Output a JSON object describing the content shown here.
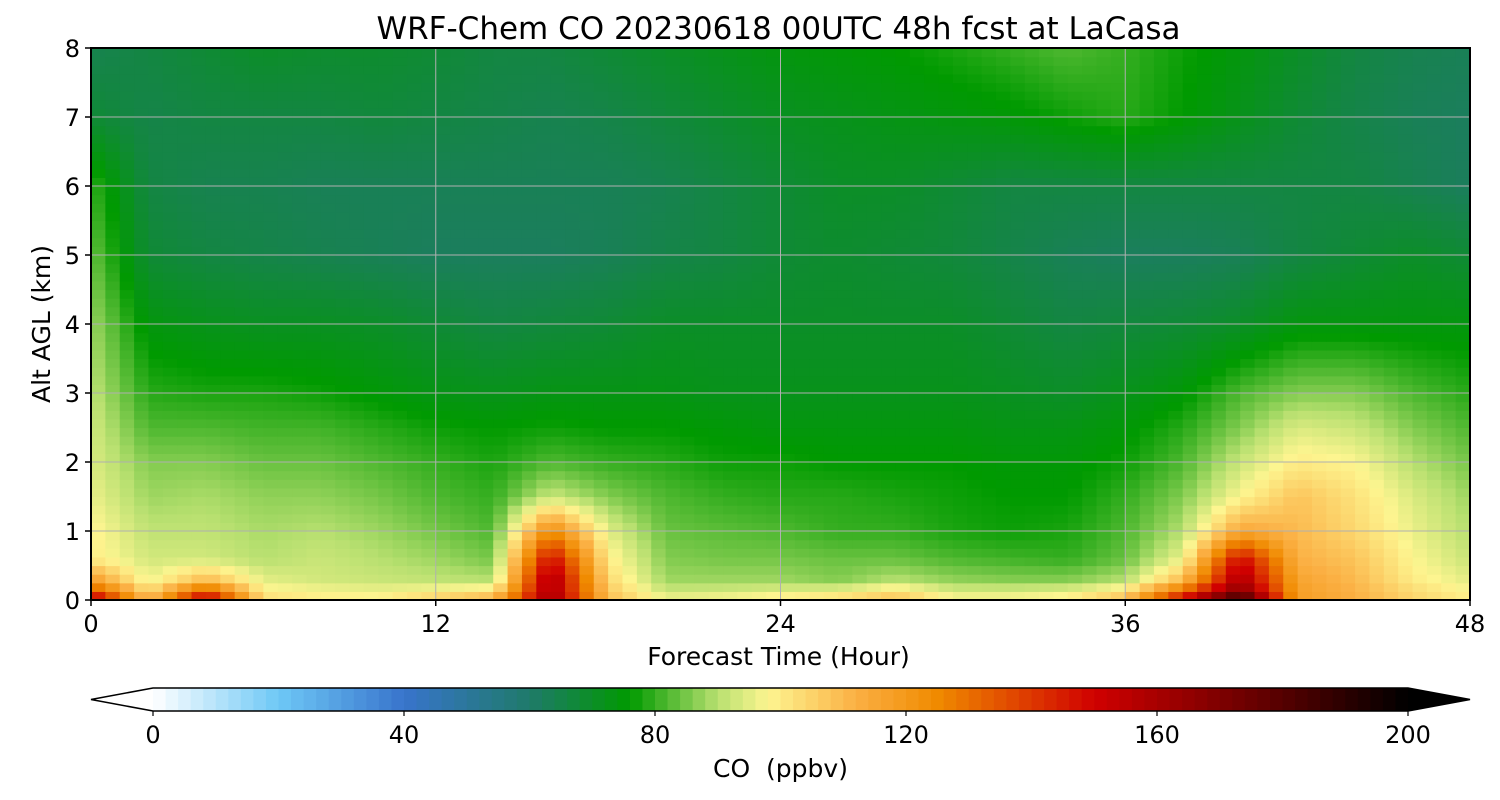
{
  "chart_data": {
    "type": "heatmap",
    "title": "WRF-Chem CO  20230618 00UTC 48h fcst at LaCasa",
    "xlabel": "Forecast Time (Hour)",
    "ylabel": "Alt AGL (km)",
    "xlim": [
      0,
      48
    ],
    "ylim": [
      0,
      8
    ],
    "x_ticks": [
      "0",
      "12",
      "24",
      "36",
      "48"
    ],
    "y_ticks": [
      "0",
      "1",
      "2",
      "3",
      "4",
      "5",
      "6",
      "7",
      "8"
    ],
    "grid": true,
    "colorbar": {
      "label": "CO  (ppbv)",
      "range": [
        0,
        200
      ],
      "ticks": [
        "0",
        "40",
        "80",
        "120",
        "160",
        "200"
      ],
      "extend": "both",
      "colors": [
        {
          "v": 0,
          "c": "#ffffff"
        },
        {
          "v": 20,
          "c": "#6ec8f6"
        },
        {
          "v": 40,
          "c": "#3874cc"
        },
        {
          "v": 60,
          "c": "#1f7a6a"
        },
        {
          "v": 76,
          "c": "#009a00"
        },
        {
          "v": 90,
          "c": "#b8e070"
        },
        {
          "v": 98,
          "c": "#fdf590"
        },
        {
          "v": 112,
          "c": "#fbb044"
        },
        {
          "v": 125,
          "c": "#f08a00"
        },
        {
          "v": 150,
          "c": "#d00000"
        },
        {
          "v": 175,
          "c": "#6a0000"
        },
        {
          "v": 200,
          "c": "#000000"
        }
      ]
    },
    "hours": [
      0,
      2,
      4,
      6,
      8,
      10,
      12,
      14,
      16,
      18,
      20,
      22,
      24,
      26,
      28,
      30,
      32,
      34,
      36,
      38,
      40,
      42,
      44,
      46,
      48
    ],
    "altitudes_km": [
      0,
      0.1,
      0.3,
      0.6,
      1,
      1.5,
      2,
      2.5,
      3,
      4,
      5,
      6,
      7,
      8
    ],
    "co_ppbv": [
      [
        165,
        110,
        160,
        104,
        100,
        100,
        108,
        115,
        165,
        110,
        98,
        99,
        102,
        105,
        110,
        98,
        98,
        100,
        110,
        155,
        200,
        118,
        112,
        104,
        100
      ],
      [
        140,
        105,
        140,
        100,
        98,
        97,
        100,
        104,
        160,
        108,
        93,
        94,
        96,
        98,
        104,
        95,
        95,
        97,
        104,
        135,
        170,
        118,
        112,
        104,
        98
      ],
      [
        118,
        96,
        110,
        95,
        93,
        92,
        91,
        90,
        160,
        104,
        88,
        88,
        88,
        86,
        90,
        87,
        86,
        86,
        90,
        110,
        160,
        116,
        110,
        100,
        95
      ],
      [
        100,
        93,
        93,
        90,
        92,
        90,
        88,
        85,
        150,
        100,
        86,
        85,
        85,
        84,
        84,
        82,
        81,
        80,
        84,
        96,
        150,
        112,
        108,
        98,
        92
      ],
      [
        99,
        91,
        91,
        89,
        90,
        88,
        85,
        82,
        125,
        95,
        84,
        83,
        82,
        80,
        80,
        78,
        77,
        78,
        82,
        90,
        115,
        110,
        104,
        96,
        90
      ],
      [
        96,
        88,
        89,
        87,
        87,
        85,
        82,
        80,
        92,
        86,
        82,
        80,
        79,
        79,
        78,
        77,
        76,
        76,
        80,
        86,
        98,
        108,
        102,
        94,
        88
      ],
      [
        94,
        86,
        86,
        84,
        84,
        82,
        80,
        78,
        82,
        80,
        79,
        77,
        77,
        76,
        76,
        76,
        75,
        75,
        77,
        82,
        92,
        100,
        98,
        90,
        85
      ],
      [
        93,
        82,
        82,
        81,
        81,
        79,
        77,
        76,
        77,
        76,
        76,
        75,
        74,
        74,
        74,
        74,
        73,
        73,
        75,
        79,
        86,
        94,
        92,
        86,
        82
      ],
      [
        91,
        79,
        78,
        78,
        77,
        75,
        73,
        72,
        73,
        73,
        73,
        72,
        72,
        72,
        72,
        72,
        71,
        70,
        72,
        75,
        82,
        86,
        86,
        82,
        79
      ],
      [
        88,
        74,
        72,
        71,
        71,
        70,
        68,
        66,
        67,
        68,
        70,
        70,
        70,
        70,
        70,
        70,
        68,
        66,
        67,
        68,
        70,
        74,
        74,
        74,
        74
      ],
      [
        84,
        68,
        66,
        65,
        64,
        63,
        62,
        62,
        62,
        63,
        65,
        66,
        68,
        69,
        68,
        67,
        65,
        63,
        62,
        62,
        63,
        66,
        68,
        70,
        68
      ],
      [
        80,
        66,
        64,
        64,
        63,
        63,
        63,
        63,
        63,
        63,
        64,
        66,
        68,
        70,
        70,
        68,
        66,
        66,
        66,
        66,
        66,
        66,
        66,
        64,
        62
      ],
      [
        68,
        65,
        66,
        66,
        66,
        67,
        66,
        65,
        64,
        65,
        67,
        69,
        71,
        72,
        73,
        74,
        75,
        77,
        79,
        76,
        72,
        68,
        65,
        63,
        62
      ],
      [
        64,
        66,
        68,
        70,
        69,
        69,
        68,
        66,
        66,
        68,
        70,
        72,
        74,
        75,
        76,
        78,
        80,
        82,
        80,
        77,
        74,
        70,
        66,
        64,
        63
      ]
    ]
  }
}
